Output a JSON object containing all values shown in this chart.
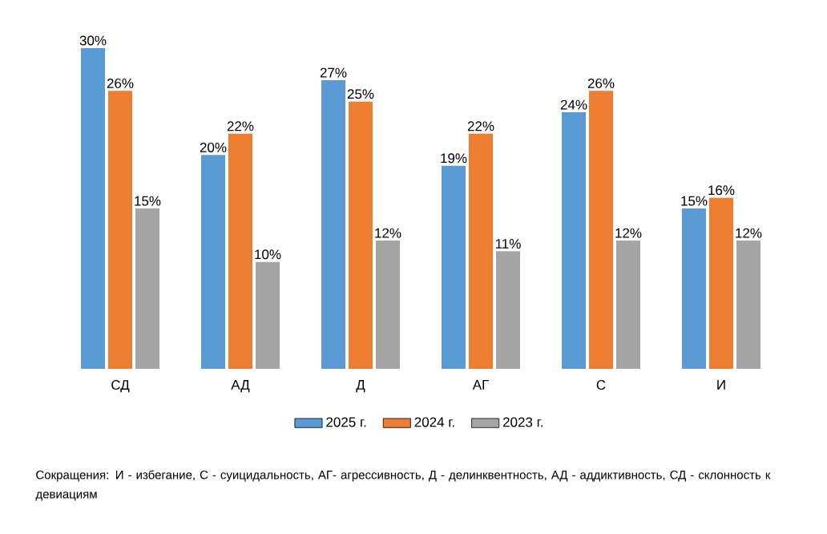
{
  "chart_data": {
    "type": "bar",
    "categories": [
      "СД",
      "АД",
      "Д",
      "АГ",
      "С",
      "И"
    ],
    "series": [
      {
        "name": "2025 г.",
        "color": "#5b9bd5",
        "values": [
          30,
          20,
          27,
          19,
          24,
          15
        ],
        "value_labels": [
          "30%",
          "20%",
          "27%",
          "19%",
          "24%",
          "15%"
        ]
      },
      {
        "name": "2024 г.",
        "color": "#ed7d31",
        "values": [
          26,
          22,
          25,
          22,
          26,
          16
        ],
        "value_labels": [
          "26%",
          "22%",
          "25%",
          "22%",
          "26%",
          "16%"
        ]
      },
      {
        "name": "2023 г.",
        "color": "#a5a5a5",
        "values": [
          15,
          10,
          12,
          11,
          12,
          12
        ],
        "value_labels": [
          "15%",
          "10%",
          "12%",
          "11%",
          "12%",
          "12%"
        ]
      }
    ],
    "ylim": [
      0,
      30
    ],
    "legend": "bottom",
    "annotations": [
      "Сокращения: И  - избегание, С  - суицидальность, АГ- агрессивность, Д - делинквентность, АД  - аддиктивность, СД  - склонность к девиациям"
    ]
  }
}
